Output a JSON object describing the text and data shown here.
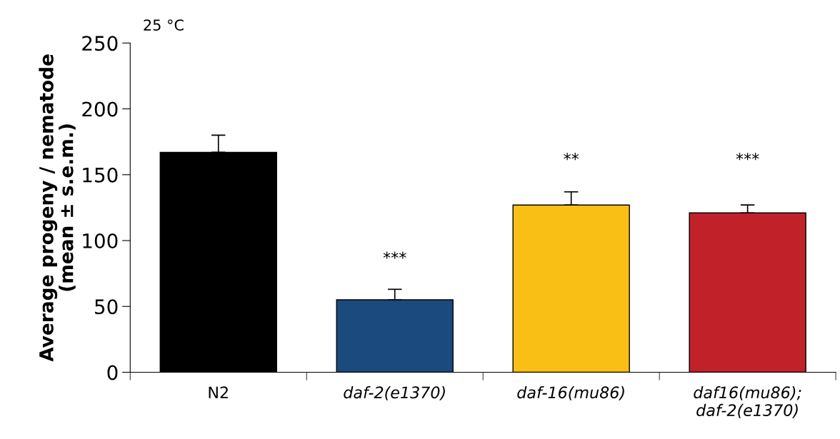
{
  "chart_data": {
    "type": "bar",
    "ylabel": "Average progeny / nematode\n(mean ± s.e.m.)",
    "categories": [
      "N2",
      "daf-2(e1370)",
      "daf-16(mu86)",
      "daf16(mu86);\ndaf-2(e1370)"
    ],
    "values": [
      167,
      55,
      127,
      121
    ],
    "colors": [
      "#000000",
      "#1a4a7e",
      "#f9bf14",
      "#c1222a"
    ],
    "errors": [
      [
        167,
        180
      ],
      [
        55,
        63
      ],
      [
        127,
        137
      ],
      [
        121,
        127
      ]
    ],
    "ylim": [
      0,
      250
    ],
    "yticks": [
      0,
      50,
      100,
      150,
      200,
      250
    ],
    "grid": false,
    "legend": false,
    "annotations": [
      "25 °C",
      "***",
      "**",
      "***"
    ]
  }
}
